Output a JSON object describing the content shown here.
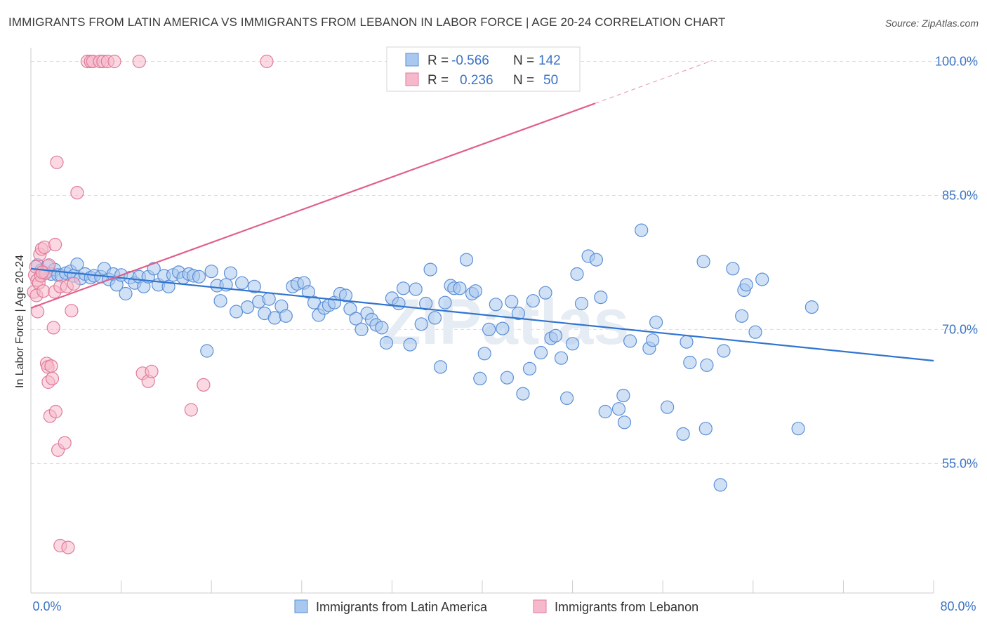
{
  "title": "IMMIGRANTS FROM LATIN AMERICA VS IMMIGRANTS FROM LEBANON IN LABOR FORCE | AGE 20-24 CORRELATION CHART",
  "source": "Source: ZipAtlas.com",
  "watermark": "ZIPatlas",
  "colors": {
    "blue_fill": "#a9c8ef",
    "blue_stroke": "#5b8fd6",
    "blue_line": "#2f74d0",
    "pink_fill": "#f6b9cb",
    "pink_stroke": "#e07a9c",
    "pink_line": "#e0608a",
    "axis_label": "#3b73c4",
    "grid": "#dddddd"
  },
  "legend_box": {
    "rows": [
      {
        "r_label": "R =",
        "r_value": "-0.566",
        "n_label": "N =",
        "n_value": "142"
      },
      {
        "r_label": "R =",
        "r_value": "0.236",
        "n_label": "N =",
        "n_value": "50"
      }
    ]
  },
  "chart_data": {
    "type": "scatter",
    "ylabel": "In Labor Force | Age 20-24",
    "xlim": [
      0,
      80
    ],
    "ylim": [
      40.5,
      102
    ],
    "x_tick_labels": [
      "0.0%",
      "80.0%"
    ],
    "y_ticks": [
      55,
      70,
      85,
      100
    ],
    "y_tick_labels": [
      "55.0%",
      "70.0%",
      "85.0%",
      "100.0%"
    ],
    "grid": true,
    "legend_position": "bottom",
    "series": [
      {
        "name": "Immigrants from Latin America",
        "color": "#5b8fd6",
        "trend": {
          "x": [
            0,
            80
          ],
          "y": [
            76.8,
            66.5
          ]
        },
        "points": [
          [
            0.6,
            77.2
          ],
          [
            0.9,
            76.6
          ],
          [
            1.2,
            76.3
          ],
          [
            1.5,
            77.1
          ],
          [
            1.8,
            76.2
          ],
          [
            2.1,
            76.7
          ],
          [
            2.4,
            76.1
          ],
          [
            2.7,
            76.0
          ],
          [
            3.1,
            76.3
          ],
          [
            3.5,
            76.5
          ],
          [
            3.8,
            76.0
          ],
          [
            4.1,
            77.3
          ],
          [
            4.4,
            75.7
          ],
          [
            4.8,
            76.2
          ],
          [
            5.3,
            75.8
          ],
          [
            5.6,
            76.0
          ],
          [
            6.2,
            75.9
          ],
          [
            6.5,
            76.8
          ],
          [
            6.9,
            75.6
          ],
          [
            7.3,
            76.2
          ],
          [
            7.6,
            75.0
          ],
          [
            8.0,
            76.1
          ],
          [
            8.4,
            74.0
          ],
          [
            8.8,
            75.8
          ],
          [
            9.2,
            75.2
          ],
          [
            9.6,
            75.9
          ],
          [
            10.0,
            74.8
          ],
          [
            10.4,
            75.9
          ],
          [
            10.9,
            76.8
          ],
          [
            11.3,
            75.0
          ],
          [
            11.8,
            76.0
          ],
          [
            12.2,
            74.8
          ],
          [
            12.6,
            76.1
          ],
          [
            13.1,
            76.4
          ],
          [
            13.5,
            75.8
          ],
          [
            14.0,
            76.2
          ],
          [
            14.4,
            76.0
          ],
          [
            14.9,
            75.9
          ],
          [
            15.6,
            67.6
          ],
          [
            16.0,
            76.5
          ],
          [
            16.5,
            74.9
          ],
          [
            16.8,
            73.2
          ],
          [
            17.3,
            75.0
          ],
          [
            17.7,
            76.3
          ],
          [
            18.2,
            72.0
          ],
          [
            18.7,
            75.2
          ],
          [
            19.2,
            72.5
          ],
          [
            19.8,
            74.8
          ],
          [
            20.2,
            73.1
          ],
          [
            20.7,
            71.8
          ],
          [
            21.1,
            73.4
          ],
          [
            21.6,
            71.3
          ],
          [
            22.2,
            72.6
          ],
          [
            22.6,
            71.5
          ],
          [
            23.2,
            74.8
          ],
          [
            23.6,
            75.1
          ],
          [
            24.2,
            75.2
          ],
          [
            24.6,
            74.2
          ],
          [
            25.1,
            73.0
          ],
          [
            25.5,
            71.6
          ],
          [
            26.0,
            72.4
          ],
          [
            26.4,
            72.7
          ],
          [
            26.9,
            73.0
          ],
          [
            27.4,
            74.0
          ],
          [
            27.9,
            73.8
          ],
          [
            28.3,
            72.3
          ],
          [
            28.8,
            71.2
          ],
          [
            29.3,
            70.0
          ],
          [
            29.8,
            71.8
          ],
          [
            30.2,
            71.1
          ],
          [
            30.6,
            70.5
          ],
          [
            31.1,
            70.2
          ],
          [
            31.5,
            68.5
          ],
          [
            32.0,
            73.5
          ],
          [
            32.6,
            72.9
          ],
          [
            33.0,
            74.6
          ],
          [
            33.6,
            68.3
          ],
          [
            34.1,
            74.5
          ],
          [
            34.6,
            70.6
          ],
          [
            35.0,
            72.9
          ],
          [
            35.4,
            76.7
          ],
          [
            35.8,
            71.3
          ],
          [
            36.3,
            65.8
          ],
          [
            36.7,
            73.0
          ],
          [
            37.2,
            74.9
          ],
          [
            37.5,
            74.6
          ],
          [
            38.0,
            74.6
          ],
          [
            38.6,
            77.8
          ],
          [
            39.1,
            74.0
          ],
          [
            39.4,
            74.3
          ],
          [
            39.8,
            64.5
          ],
          [
            40.2,
            67.3
          ],
          [
            40.6,
            70.0
          ],
          [
            41.2,
            72.8
          ],
          [
            41.8,
            70.1
          ],
          [
            42.2,
            64.6
          ],
          [
            42.6,
            73.1
          ],
          [
            43.2,
            71.8
          ],
          [
            43.6,
            62.8
          ],
          [
            44.2,
            65.6
          ],
          [
            44.5,
            73.2
          ],
          [
            45.2,
            67.4
          ],
          [
            45.6,
            74.1
          ],
          [
            46.1,
            69.0
          ],
          [
            46.5,
            69.3
          ],
          [
            47.0,
            66.8
          ],
          [
            47.5,
            62.3
          ],
          [
            48.0,
            68.4
          ],
          [
            48.4,
            76.2
          ],
          [
            48.8,
            72.9
          ],
          [
            49.4,
            78.2
          ],
          [
            50.1,
            77.8
          ],
          [
            50.5,
            73.6
          ],
          [
            50.9,
            60.8
          ],
          [
            52.1,
            61.1
          ],
          [
            52.5,
            62.6
          ],
          [
            52.6,
            59.6
          ],
          [
            53.1,
            68.7
          ],
          [
            54.1,
            81.1
          ],
          [
            54.8,
            67.9
          ],
          [
            55.1,
            68.8
          ],
          [
            55.4,
            70.8
          ],
          [
            56.4,
            61.3
          ],
          [
            57.8,
            58.3
          ],
          [
            58.1,
            68.6
          ],
          [
            58.4,
            66.3
          ],
          [
            59.6,
            77.6
          ],
          [
            59.8,
            58.9
          ],
          [
            59.9,
            66.0
          ],
          [
            61.1,
            52.6
          ],
          [
            61.4,
            67.6
          ],
          [
            62.2,
            76.8
          ],
          [
            63.0,
            71.5
          ],
          [
            63.2,
            74.4
          ],
          [
            63.4,
            75.0
          ],
          [
            64.2,
            69.7
          ],
          [
            64.8,
            75.6
          ],
          [
            68.0,
            58.9
          ],
          [
            69.2,
            72.5
          ]
        ]
      },
      {
        "name": "Immigrants from Lebanon",
        "color": "#e07a9c",
        "trend": {
          "x": [
            0,
            50
          ],
          "y": [
            72.4,
            95.3
          ]
        },
        "trend_ext": {
          "x": [
            50,
            60.4
          ],
          "y": [
            95.3,
            100.1
          ]
        },
        "points": [
          [
            0.25,
            74.2
          ],
          [
            0.35,
            76.1
          ],
          [
            0.45,
            77.0
          ],
          [
            0.5,
            73.8
          ],
          [
            0.55,
            75.5
          ],
          [
            0.6,
            72.0
          ],
          [
            0.7,
            75.2
          ],
          [
            0.8,
            78.4
          ],
          [
            0.9,
            76.0
          ],
          [
            0.95,
            79.0
          ],
          [
            1.1,
            74.3
          ],
          [
            1.2,
            79.2
          ],
          [
            1.3,
            76.3
          ],
          [
            1.4,
            66.2
          ],
          [
            1.5,
            65.8
          ],
          [
            1.55,
            64.1
          ],
          [
            1.6,
            77.2
          ],
          [
            1.7,
            60.3
          ],
          [
            1.8,
            65.9
          ],
          [
            1.9,
            64.5
          ],
          [
            2.0,
            70.2
          ],
          [
            2.1,
            74.2
          ],
          [
            2.15,
            79.5
          ],
          [
            2.2,
            60.8
          ],
          [
            2.3,
            88.7
          ],
          [
            2.4,
            56.5
          ],
          [
            2.6,
            74.8
          ],
          [
            3.0,
            57.3
          ],
          [
            3.2,
            74.8
          ],
          [
            3.6,
            72.1
          ],
          [
            3.8,
            75.1
          ],
          [
            4.1,
            85.3
          ],
          [
            5.0,
            100.0
          ],
          [
            5.3,
            100.0
          ],
          [
            5.5,
            100.0
          ],
          [
            6.1,
            100.0
          ],
          [
            6.4,
            100.0
          ],
          [
            6.8,
            100.0
          ],
          [
            7.4,
            100.0
          ],
          [
            9.6,
            100.0
          ],
          [
            9.9,
            65.1
          ],
          [
            10.4,
            64.2
          ],
          [
            10.7,
            65.3
          ],
          [
            14.2,
            61.0
          ],
          [
            15.3,
            63.8
          ],
          [
            20.9,
            100.0
          ],
          [
            37.8,
            100.0
          ],
          [
            2.6,
            45.8
          ],
          [
            3.3,
            45.6
          ],
          [
            1.0,
            76.4
          ]
        ]
      }
    ]
  }
}
